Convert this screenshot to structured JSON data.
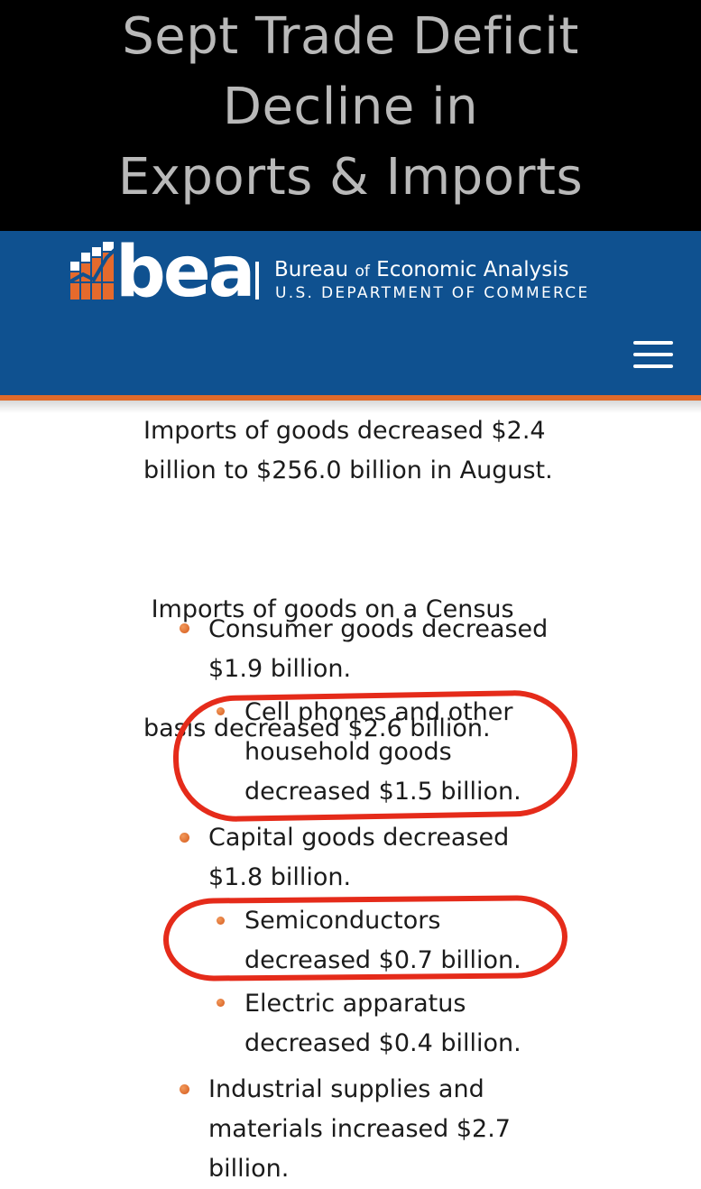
{
  "banner": {
    "title_lines": [
      "Sept Trade Deficit",
      "Decline in",
      "Exports & Imports"
    ]
  },
  "header": {
    "logo_word": "bea",
    "agency_name_part1": "Bureau",
    "agency_name_of": "of",
    "agency_name_part2": "Economic Analysis",
    "department": "U.S. DEPARTMENT OF COMMERCE",
    "menu_icon": "hamburger-menu-icon",
    "colors": {
      "header_bg": "#0f5190",
      "accent_stripe": "#e06a2a",
      "logo_orange": "#e56a2c"
    }
  },
  "content": {
    "paragraphs": [
      [
        "Imports of goods decreased $2.4",
        "billion to $256.0 billion in August."
      ],
      [
        " Imports of goods on a Census",
        "basis decreased $2.6 billion."
      ]
    ],
    "bullets": {
      "consumer": [
        "Consumer goods decreased",
        "$1.9 billion."
      ],
      "cell_phones": [
        "Cell phones and other",
        "household goods",
        "decreased $1.5 billion."
      ],
      "capital": [
        "Capital goods decreased",
        "$1.8 billion."
      ],
      "semiconductors": [
        "Semiconductors",
        "decreased $0.7 billion."
      ],
      "electric": [
        "Electric apparatus",
        "decreased $0.4 billion."
      ],
      "industrial": [
        "Industrial supplies and",
        "materials increased $2.7",
        "billion."
      ]
    },
    "bullet_color": "#e06a2a",
    "annotation_color": "#e52b1a"
  }
}
